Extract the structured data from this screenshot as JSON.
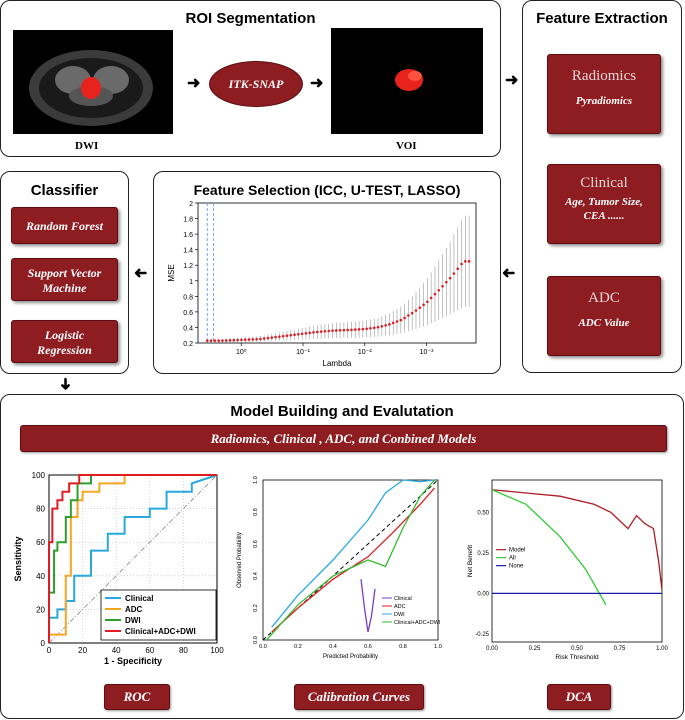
{
  "roi": {
    "title": "ROI Segmentation",
    "left_image_label": "DWI",
    "tool_label": "ITK-SNAP",
    "right_image_label": "VOI"
  },
  "feature_extraction": {
    "title": "Feature Extraction",
    "boxes": [
      {
        "title": "Radiomics",
        "detail": "Pyradiomics"
      },
      {
        "title": "Clinical",
        "detail": "Age, Tumor Size, CEA ......"
      },
      {
        "title": "ADC",
        "detail": "ADC Value"
      }
    ]
  },
  "classifier": {
    "title": "Classifier",
    "items": [
      "Random Forest",
      "Support Vector Machine",
      "Logistic Regression"
    ]
  },
  "feature_selection": {
    "title": "Feature Selection (ICC, U-TEST, LASSO)",
    "chart_data": {
      "type": "line",
      "title": "",
      "xlabel": "Lambda",
      "ylabel": "MSE",
      "x_tick_labels": [
        "10⁰",
        "10⁻¹",
        "10⁻²",
        "10⁻³"
      ],
      "y_tick_labels": [
        "0.2",
        "0.4",
        "0.6",
        "0.8",
        "1",
        "1.2",
        "1.4",
        "1.6",
        "1.8",
        "2"
      ],
      "ylim": [
        0.2,
        2
      ],
      "series": [
        {
          "name": "MSE",
          "log_lambda": [
            0.5,
            0.3,
            0.0,
            -0.3,
            -0.6,
            -0.9,
            -1.2,
            -1.5,
            -1.8,
            -2.0,
            -2.2,
            -2.4,
            -2.6,
            -2.8,
            -3.0,
            -3.2,
            -3.4,
            -3.6
          ],
          "values": [
            0.23,
            0.23,
            0.24,
            0.25,
            0.28,
            0.31,
            0.34,
            0.36,
            0.37,
            0.38,
            0.4,
            0.44,
            0.5,
            0.6,
            0.72,
            0.88,
            1.05,
            1.25
          ]
        }
      ]
    }
  },
  "model_building": {
    "title": "Model Building and Evalutation",
    "banner": "Radiomics, Clinical , ADC,  and Conbined Models",
    "roc": {
      "caption": "ROC",
      "chart_data": {
        "type": "line",
        "xlabel": "1 - Specificity",
        "ylabel": "Sensitivity",
        "x_tick_labels": [
          "0",
          "20",
          "40",
          "60",
          "80",
          "100"
        ],
        "y_tick_labels": [
          "0",
          "20",
          "40",
          "60",
          "80",
          "100"
        ],
        "xlim": [
          0,
          100
        ],
        "ylim": [
          0,
          100
        ],
        "series": [
          {
            "name": "Clinical",
            "color": "#29a8e0",
            "x": [
              0,
              0,
              5,
              5,
              10,
              10,
              15,
              15,
              25,
              25,
              35,
              35,
              45,
              45,
              60,
              60,
              70,
              70,
              85,
              85,
              100
            ],
            "y": [
              0,
              15,
              15,
              20,
              20,
              25,
              25,
              40,
              40,
              55,
              55,
              65,
              65,
              75,
              75,
              80,
              80,
              90,
              90,
              95,
              100
            ]
          },
          {
            "name": "ADC",
            "color": "#f5a623",
            "x": [
              0,
              0,
              10,
              10,
              13,
              13,
              17,
              17,
              20,
              20,
              30,
              30,
              45,
              45,
              100
            ],
            "y": [
              0,
              5,
              5,
              40,
              40,
              75,
              75,
              85,
              85,
              90,
              90,
              95,
              95,
              100,
              100
            ]
          },
          {
            "name": "DWI",
            "color": "#2f9e2f",
            "x": [
              0,
              0,
              3,
              3,
              5,
              5,
              10,
              10,
              13,
              13,
              17,
              17,
              25,
              25,
              100
            ],
            "y": [
              0,
              30,
              30,
              55,
              55,
              60,
              60,
              75,
              75,
              85,
              85,
              95,
              95,
              100,
              100
            ]
          },
          {
            "name": "Clinical+ADC+DWI",
            "color": "#e11b22",
            "x": [
              0,
              0,
              2,
              2,
              5,
              5,
              8,
              8,
              12,
              12,
              18,
              18,
              100
            ],
            "y": [
              0,
              60,
              60,
              80,
              80,
              85,
              85,
              90,
              90,
              95,
              95,
              100,
              100
            ]
          }
        ]
      }
    },
    "calibration": {
      "caption": "Calibration Curves",
      "chart_data": {
        "type": "line",
        "xlabel": "Predicted Probability",
        "ylabel": "Observed Probability",
        "x_tick_labels": [
          "0.0",
          "0.2",
          "0.4",
          "0.6",
          "0.8",
          "1.0"
        ],
        "y_tick_labels": [
          "0.0",
          "0.2",
          "0.4",
          "0.6",
          "0.8",
          "1.0"
        ],
        "xlim": [
          0,
          1
        ],
        "ylim": [
          0,
          1
        ],
        "series": [
          {
            "name": "Clinical",
            "color": "#7a3fc8",
            "x": [
              0.56,
              0.58,
              0.6,
              0.62,
              0.64
            ],
            "y": [
              0.38,
              0.2,
              0.05,
              0.15,
              0.32
            ]
          },
          {
            "name": "ADC",
            "color": "#e11b22",
            "x": [
              0.05,
              0.2,
              0.4,
              0.6,
              0.75,
              0.9,
              0.98
            ],
            "y": [
              0.05,
              0.2,
              0.38,
              0.52,
              0.68,
              0.85,
              0.95
            ]
          },
          {
            "name": "DWI",
            "color": "#29a8e0",
            "x": [
              0.05,
              0.2,
              0.4,
              0.6,
              0.7,
              0.8,
              0.9,
              0.98
            ],
            "y": [
              0.08,
              0.28,
              0.5,
              0.75,
              0.92,
              1.0,
              0.99,
              1.0
            ]
          },
          {
            "name": "Clinical+ADC+DWI",
            "color": "#2fbf2f",
            "x": [
              0.02,
              0.2,
              0.4,
              0.6,
              0.7,
              0.8,
              0.9,
              0.98
            ],
            "y": [
              0.0,
              0.22,
              0.4,
              0.5,
              0.46,
              0.7,
              0.9,
              1.0
            ]
          }
        ]
      }
    },
    "dca": {
      "caption": "DCA",
      "chart_data": {
        "type": "line",
        "xlabel": "Risk Threshold",
        "ylabel": "Net Benefit",
        "x_tick_labels": [
          "0.00",
          "0.25",
          "0.50",
          "0.75",
          "1.00"
        ],
        "y_tick_labels": [
          "-0.25",
          "0.00",
          "0.25",
          "0.50"
        ],
        "xlim": [
          0,
          1
        ],
        "ylim": [
          -0.3,
          0.7
        ],
        "series": [
          {
            "name": "Model",
            "color": "#b01c22",
            "x": [
              0.0,
              0.2,
              0.4,
              0.6,
              0.7,
              0.75,
              0.8,
              0.85,
              0.9,
              0.95,
              0.98,
              1.0
            ],
            "y": [
              0.64,
              0.62,
              0.6,
              0.55,
              0.5,
              0.45,
              0.4,
              0.48,
              0.43,
              0.4,
              0.2,
              0.02
            ]
          },
          {
            "name": "All",
            "color": "#33cc33",
            "x": [
              0.0,
              0.2,
              0.4,
              0.55,
              0.67
            ],
            "y": [
              0.64,
              0.55,
              0.35,
              0.15,
              -0.07
            ]
          },
          {
            "name": "None",
            "color": "#1a1aa8",
            "x": [
              0.0,
              1.0
            ],
            "y": [
              0.0,
              0.0
            ]
          }
        ]
      }
    }
  }
}
